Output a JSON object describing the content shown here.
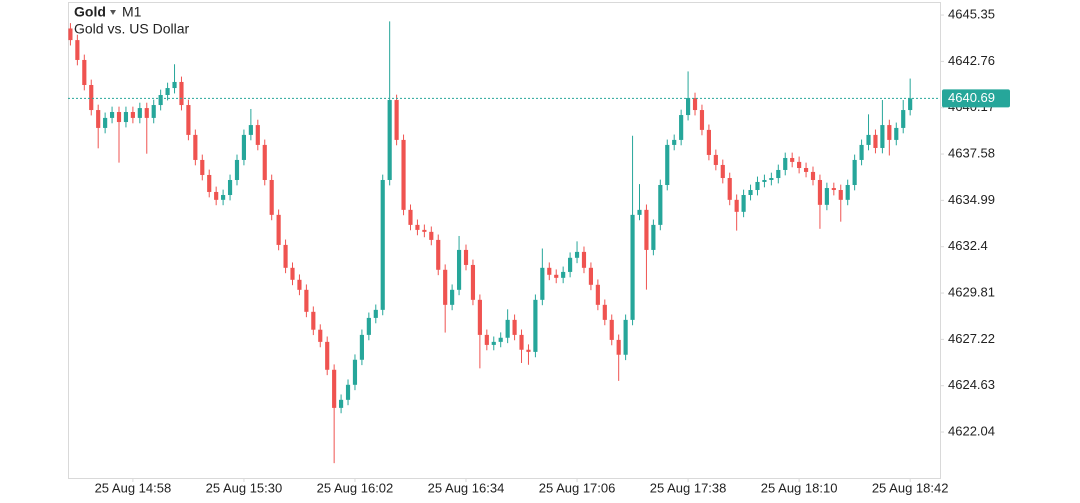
{
  "chart_data": {
    "type": "candlestick",
    "title": "Gold",
    "timeframe": "M1",
    "subtitle": "Gold vs. US Dollar",
    "up_color": "#26a69a",
    "down_color": "#ef5350",
    "grid": false,
    "xlim": [
      -0.35,
      125.3
    ],
    "ylim": [
      4619.47,
      4646.08
    ],
    "yticks": [
      4645.35,
      4642.76,
      4640.17,
      4637.58,
      4634.99,
      4632.4,
      4629.81,
      4627.22,
      4624.63,
      4622.04
    ],
    "xticks": [
      {
        "value": 9,
        "label": "25 Aug 14:58"
      },
      {
        "value": 25,
        "label": "25 Aug 15:30"
      },
      {
        "value": 41,
        "label": "25 Aug 16:02"
      },
      {
        "value": 57,
        "label": "25 Aug 16:34"
      },
      {
        "value": 73,
        "label": "25 Aug 17:06"
      },
      {
        "value": 89,
        "label": "25 Aug 17:38"
      },
      {
        "value": 105,
        "label": "25 Aug 18:10"
      },
      {
        "value": 121,
        "label": "25 Aug 18:42"
      }
    ],
    "last_price": 4640.69,
    "last_price_color": "#26a69a",
    "open": [
      4644.6,
      4643.95,
      4642.84,
      4641.44,
      4640.04,
      4639.04,
      4639.6,
      4639.93,
      4639.37,
      4639.93,
      4639.6,
      4640.15,
      4639.6,
      4640.32,
      4640.88,
      4641.27,
      4641.61,
      4640.32,
      4638.65,
      4637.25,
      4636.41,
      4635.46,
      4635.02,
      4635.29,
      4636.13,
      4637.25,
      4638.65,
      4639.2,
      4638.09,
      4636.13,
      4634.18,
      4632.5,
      4631.22,
      4630.55,
      4629.99,
      4628.76,
      4627.76,
      4627.08,
      4625.52,
      4623.39,
      4623.84,
      4624.68,
      4626.08,
      4627.47,
      4628.42,
      4628.87,
      4636.13,
      4640.6,
      4638.37,
      4634.46,
      4633.62,
      4633.34,
      4633.23,
      4632.78,
      4631.11,
      4629.15,
      4629.99,
      4632.22,
      4631.38,
      4629.43,
      4627.47,
      4626.91,
      4627.08,
      4627.31,
      4628.31,
      4627.47,
      4626.64,
      4626.52,
      4629.43,
      4631.22,
      4630.83,
      4630.66,
      4630.99,
      4631.78,
      4632.11,
      4631.22,
      4630.27,
      4629.15,
      4628.31,
      4627.19,
      4626.36,
      4628.31,
      4634.18,
      4634.46,
      4632.22,
      4633.62,
      4635.85,
      4638.09,
      4638.37,
      4639.76,
      4640.71,
      4640.04,
      4638.93,
      4637.53,
      4636.97,
      4636.24,
      4635.02,
      4634.35,
      4635.29,
      4635.57,
      4636.02,
      4636.13,
      4636.24,
      4636.69,
      4637.36,
      4637.14,
      4636.8,
      4636.58,
      4636.13,
      4634.74,
      4635.68,
      4635.57,
      4635.02,
      4635.85,
      4637.25,
      4638.09,
      4638.65,
      4637.92,
      4639.2,
      4638.37,
      4639.04,
      4640.04
    ],
    "high": [
      4644.9,
      4644.25,
      4643.14,
      4641.74,
      4640.34,
      4639.9,
      4640.23,
      4640.23,
      4640.23,
      4640.23,
      4640.45,
      4640.45,
      4640.62,
      4641.18,
      4641.57,
      4642.6,
      4641.91,
      4640.62,
      4638.95,
      4637.55,
      4636.71,
      4635.76,
      4635.59,
      4636.43,
      4637.55,
      4638.95,
      4640.1,
      4639.5,
      4638.39,
      4636.43,
      4634.48,
      4632.8,
      4631.52,
      4630.85,
      4630.29,
      4629.06,
      4628.06,
      4627.38,
      4625.82,
      4624.14,
      4624.98,
      4626.38,
      4627.77,
      4628.72,
      4629.17,
      4636.43,
      4645.0,
      4640.9,
      4638.67,
      4634.76,
      4633.92,
      4633.64,
      4633.53,
      4633.08,
      4631.41,
      4630.29,
      4633.0,
      4632.52,
      4631.68,
      4629.73,
      4627.77,
      4627.38,
      4627.61,
      4628.9,
      4628.61,
      4627.77,
      4626.94,
      4629.73,
      4632.3,
      4631.52,
      4631.13,
      4631.29,
      4632.08,
      4632.7,
      4632.41,
      4631.52,
      4630.57,
      4629.45,
      4628.61,
      4627.49,
      4628.61,
      4638.6,
      4635.9,
      4634.76,
      4633.92,
      4636.15,
      4638.39,
      4638.67,
      4640.06,
      4642.2,
      4641.01,
      4640.34,
      4639.23,
      4637.83,
      4637.27,
      4636.54,
      4635.32,
      4635.59,
      4635.87,
      4636.32,
      4636.43,
      4636.54,
      4636.99,
      4637.66,
      4637.66,
      4637.44,
      4637.1,
      4636.88,
      4636.43,
      4635.98,
      4635.98,
      4635.87,
      4636.15,
      4637.55,
      4638.39,
      4639.8,
      4638.95,
      4640.6,
      4639.5,
      4639.34,
      4640.6,
      4641.8
    ],
    "low": [
      4643.65,
      4642.54,
      4641.14,
      4639.74,
      4637.9,
      4638.74,
      4639.3,
      4637.1,
      4639.07,
      4639.3,
      4639.3,
      4637.6,
      4639.3,
      4640.02,
      4640.58,
      4640.97,
      4640.02,
      4638.35,
      4636.95,
      4636.11,
      4635.16,
      4634.72,
      4634.72,
      4634.99,
      4635.83,
      4636.95,
      4638.35,
      4637.79,
      4635.83,
      4633.88,
      4632.2,
      4630.92,
      4630.25,
      4629.69,
      4628.46,
      4627.46,
      4626.78,
      4625.22,
      4620.3,
      4623.09,
      4623.54,
      4624.38,
      4625.78,
      4627.17,
      4628.12,
      4628.57,
      4635.83,
      4638.07,
      4634.16,
      4633.32,
      4633.04,
      4632.93,
      4632.48,
      4630.81,
      4627.6,
      4628.85,
      4629.69,
      4631.08,
      4629.13,
      4625.6,
      4626.61,
      4626.61,
      4626.78,
      4627.01,
      4627.17,
      4625.9,
      4625.8,
      4626.22,
      4629.13,
      4630.53,
      4630.36,
      4630.36,
      4630.69,
      4631.48,
      4630.92,
      4629.97,
      4628.85,
      4628.01,
      4626.89,
      4624.9,
      4626.06,
      4628.01,
      4633.88,
      4630.0,
      4631.92,
      4633.32,
      4635.55,
      4637.79,
      4638.07,
      4639.46,
      4639.74,
      4638.63,
      4637.23,
      4636.67,
      4635.94,
      4634.72,
      4633.3,
      4634.05,
      4634.99,
      4635.27,
      4635.72,
      4635.83,
      4635.94,
      4636.39,
      4636.84,
      4636.5,
      4636.28,
      4635.83,
      4633.4,
      4634.44,
      4635.27,
      4633.8,
      4634.72,
      4635.55,
      4636.95,
      4637.79,
      4637.62,
      4637.62,
      4637.5,
      4638.07,
      4638.74,
      4639.74
    ],
    "close": [
      4643.95,
      4642.84,
      4641.44,
      4640.04,
      4639.04,
      4639.6,
      4639.93,
      4639.37,
      4639.93,
      4639.6,
      4640.15,
      4639.6,
      4640.32,
      4640.88,
      4641.27,
      4641.61,
      4640.32,
      4638.65,
      4637.25,
      4636.41,
      4635.46,
      4635.02,
      4635.29,
      4636.13,
      4637.25,
      4638.65,
      4639.2,
      4638.09,
      4636.13,
      4634.18,
      4632.5,
      4631.22,
      4630.55,
      4629.99,
      4628.76,
      4627.76,
      4627.08,
      4625.52,
      4623.39,
      4623.84,
      4624.68,
      4626.08,
      4627.47,
      4628.42,
      4628.87,
      4636.13,
      4640.6,
      4638.37,
      4634.46,
      4633.62,
      4633.34,
      4633.23,
      4632.78,
      4631.11,
      4629.15,
      4629.99,
      4632.22,
      4631.38,
      4629.43,
      4627.47,
      4626.91,
      4627.08,
      4627.31,
      4628.31,
      4627.47,
      4626.64,
      4626.52,
      4629.43,
      4631.22,
      4630.83,
      4630.66,
      4630.99,
      4631.78,
      4632.11,
      4631.22,
      4630.27,
      4629.15,
      4628.31,
      4627.19,
      4626.36,
      4628.31,
      4634.18,
      4634.46,
      4632.22,
      4633.62,
      4635.85,
      4638.09,
      4638.37,
      4639.76,
      4640.71,
      4640.04,
      4638.93,
      4637.53,
      4636.97,
      4636.24,
      4635.02,
      4634.35,
      4635.29,
      4635.57,
      4636.02,
      4636.13,
      4636.24,
      4636.69,
      4637.36,
      4637.14,
      4636.8,
      4636.58,
      4636.13,
      4634.74,
      4635.68,
      4635.57,
      4635.02,
      4635.85,
      4637.25,
      4638.09,
      4638.65,
      4637.92,
      4639.2,
      4638.37,
      4639.04,
      4640.04,
      4640.69
    ]
  }
}
